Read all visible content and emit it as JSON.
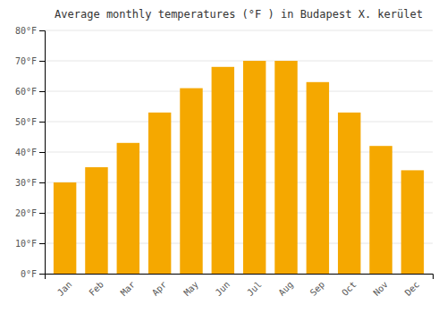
{
  "chart_data": {
    "type": "bar",
    "title": "Average monthly temperatures (°F ) in Budapest X. kerület",
    "categories": [
      "Jan",
      "Feb",
      "Mar",
      "Apr",
      "May",
      "Jun",
      "Jul",
      "Aug",
      "Sep",
      "Oct",
      "Nov",
      "Dec"
    ],
    "values": [
      30,
      35,
      43,
      53,
      61,
      68,
      70,
      70,
      63,
      53,
      42,
      34
    ],
    "color": "#F5A800",
    "ylim": [
      0,
      80
    ],
    "yticks": [
      {
        "value": 0,
        "label": "0°F"
      },
      {
        "value": 10,
        "label": "10°F"
      },
      {
        "value": 20,
        "label": "20°F"
      },
      {
        "value": 30,
        "label": "30°F"
      },
      {
        "value": 40,
        "label": "40°F"
      },
      {
        "value": 50,
        "label": "50°F"
      },
      {
        "value": 60,
        "label": "60°F"
      },
      {
        "value": 70,
        "label": "70°F"
      },
      {
        "value": 80,
        "label": "80°F"
      }
    ],
    "grid": true
  }
}
